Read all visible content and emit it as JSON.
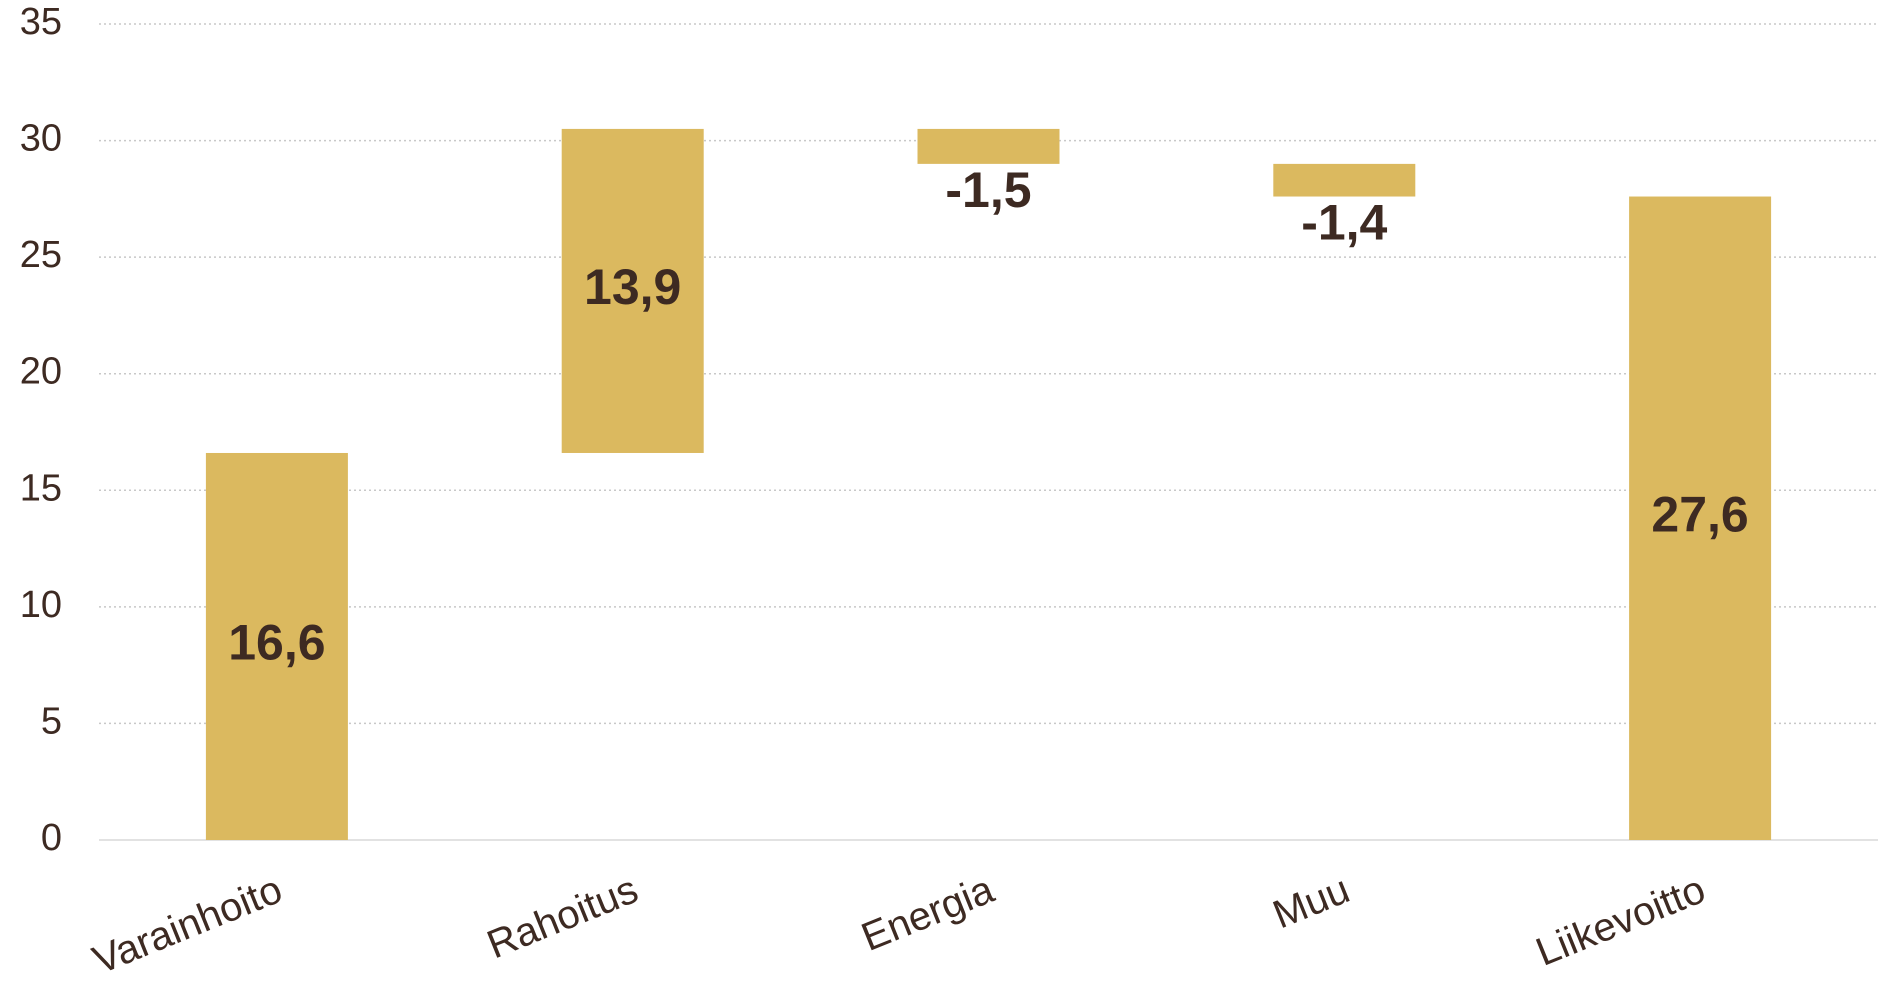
{
  "chart_data": {
    "type": "waterfall",
    "categories": [
      "Varainhoito",
      "Rahoitus",
      "Energia",
      "Muu",
      "Liikevoitto"
    ],
    "values": [
      16.6,
      13.9,
      -1.5,
      -1.4,
      27.6
    ],
    "value_labels": [
      "16,6",
      "13,9",
      "-1,5",
      "-1,4",
      "27,6"
    ],
    "is_total": [
      false,
      false,
      false,
      false,
      true
    ],
    "color": "#dbb95f",
    "ylim": [
      0,
      35
    ],
    "yticks": [
      0,
      5,
      10,
      15,
      20,
      25,
      30,
      35
    ],
    "grid": true
  }
}
